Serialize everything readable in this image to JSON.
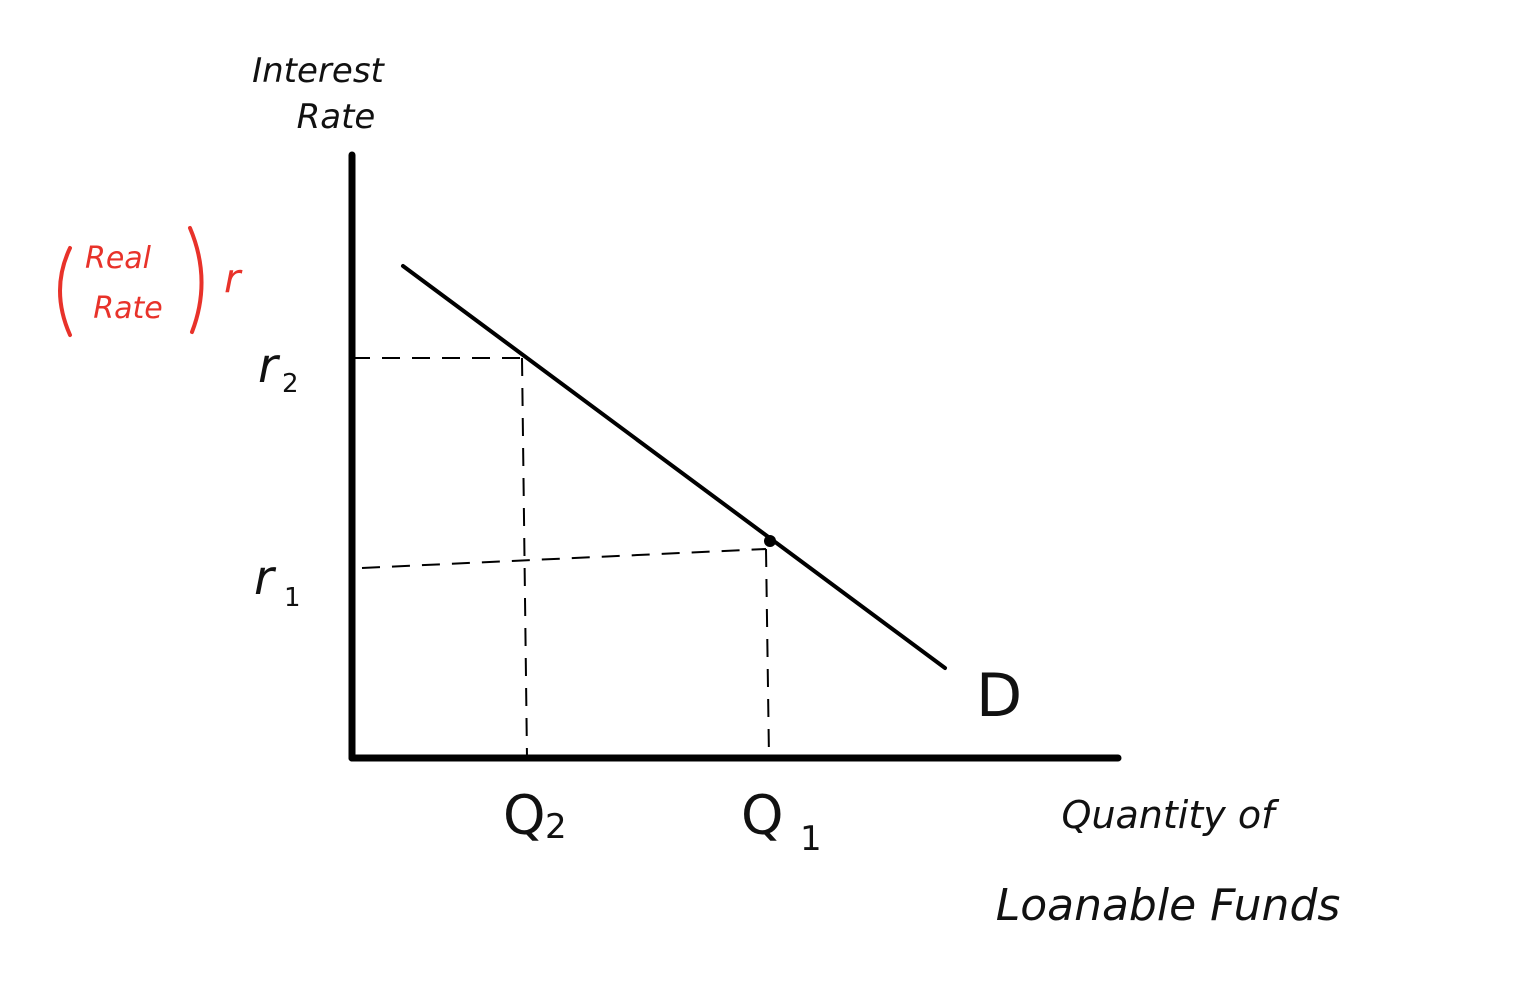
{
  "y_axis": {
    "label_line1": "Interest",
    "label_line2": "Rate",
    "annotation_line1": "Real",
    "annotation_line2": "Rate",
    "annotation_symbol": "r",
    "annotation_color": "#e8322a"
  },
  "x_axis": {
    "label_line1": "Quantity of",
    "label_line2": "Loanable Funds"
  },
  "y_ticks": [
    {
      "label": "r",
      "sub": "2"
    },
    {
      "label": "r",
      "sub": "1"
    }
  ],
  "x_ticks": [
    {
      "label": "Q",
      "sub": "2"
    },
    {
      "label": "Q",
      "sub": "1"
    }
  ],
  "curve_label": "D"
}
